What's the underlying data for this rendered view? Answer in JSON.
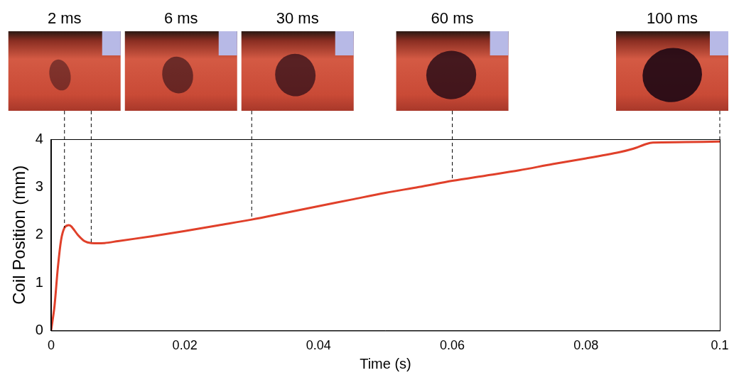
{
  "chart_data": {
    "type": "line",
    "xlabel": "Time (s)",
    "ylabel": "Coil Position (mm)",
    "x": [
      0,
      0.0005,
      0.001,
      0.0015,
      0.002,
      0.0025,
      0.003,
      0.004,
      0.005,
      0.006,
      0.008,
      0.01,
      0.015,
      0.02,
      0.025,
      0.03,
      0.035,
      0.04,
      0.045,
      0.05,
      0.055,
      0.06,
      0.065,
      0.07,
      0.075,
      0.08,
      0.085,
      0.087,
      0.089,
      0.09,
      0.095,
      0.1
    ],
    "values": [
      0,
      0.5,
      1.3,
      1.9,
      2.15,
      2.2,
      2.18,
      2.0,
      1.87,
      1.83,
      1.83,
      1.87,
      1.97,
      2.08,
      2.2,
      2.32,
      2.46,
      2.6,
      2.74,
      2.88,
      3.0,
      3.13,
      3.24,
      3.35,
      3.48,
      3.6,
      3.73,
      3.8,
      3.9,
      3.93,
      3.94,
      3.95
    ],
    "color": "#e0402a",
    "xlim": [
      0,
      0.1
    ],
    "ylim": [
      0,
      4
    ],
    "xticks": [
      0,
      0.02,
      0.04,
      0.06,
      0.08,
      0.1
    ],
    "yticks": [
      0,
      1,
      2,
      3,
      4
    ],
    "grid": false,
    "annotations": [
      {
        "x": 0.002,
        "text": "2 ms"
      },
      {
        "x": 0.006,
        "text": "6 ms"
      },
      {
        "x": 0.03,
        "text": "30 ms"
      },
      {
        "x": 0.06,
        "text": "60 ms"
      },
      {
        "x": 0.1,
        "text": "100 ms"
      }
    ]
  }
}
